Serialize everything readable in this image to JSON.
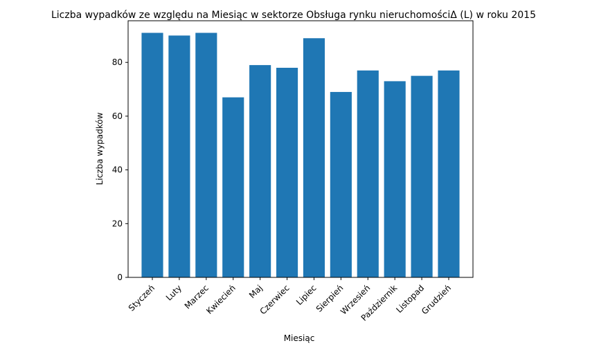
{
  "chart_data": {
    "type": "bar",
    "title": "Liczba wypadków ze względu na Miesiąc w sektorze  Obsługa rynku nieruchomościΔ  (L) w roku 2015",
    "xlabel": "Miesiąc",
    "ylabel": "Liczba wypadków",
    "categories": [
      "Styczeń",
      "Luty",
      "Marzec",
      "Kwiecień",
      "Maj",
      "Czerwiec",
      "Lipiec",
      "Sierpień",
      "Wrzesień",
      "Październik",
      "Listopad",
      "Grudzień"
    ],
    "values": [
      91,
      90,
      91,
      67,
      79,
      78,
      89,
      69,
      77,
      73,
      75,
      77
    ],
    "ylim": [
      0,
      95.5
    ],
    "yticks": [
      "0",
      "20",
      "40",
      "60",
      "80"
    ],
    "bar_color": "#1f77b4",
    "grid": false,
    "legend": "none"
  }
}
